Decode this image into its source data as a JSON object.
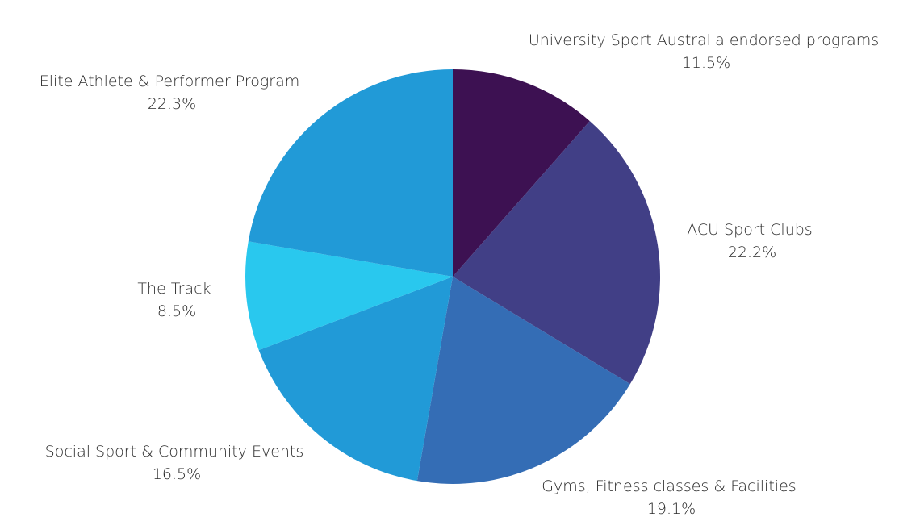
{
  "chart_data": {
    "type": "pie",
    "start_angle": "12 o'clock",
    "direction": "clockwise",
    "slices": [
      {
        "label": "University Sport Australia endorsed programs",
        "value": 11.5,
        "value_label": "11.5%",
        "color": "#3d1152"
      },
      {
        "label": "ACU Sport Clubs",
        "value": 22.2,
        "value_label": "22.2%",
        "color": "#413f86"
      },
      {
        "label": "Gyms, Fitness classes & Facilities",
        "value": 19.1,
        "value_label": "19.1%",
        "color": "#346db5"
      },
      {
        "label": "Social Sport & Community Events",
        "value": 16.5,
        "value_label": "16.5%",
        "color": "#219ad7"
      },
      {
        "label": "The Track",
        "value": 8.5,
        "value_label": "8.5%",
        "color": "#29c8ee"
      },
      {
        "label": "Elite Athlete & Performer Program",
        "value": 22.3,
        "value_label": "22.3%",
        "color": "#219ad7"
      }
    ]
  }
}
